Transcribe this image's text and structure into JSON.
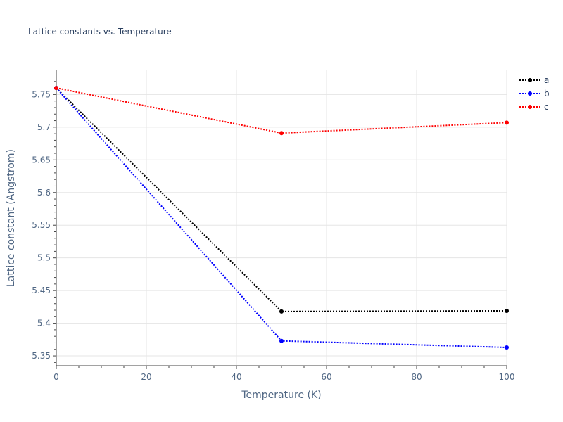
{
  "chart_data": {
    "type": "line",
    "title": "Lattice constants vs. Temperature",
    "xlabel": "Temperature (K)",
    "ylabel": "Lattice constant (Angstrom)",
    "xlim": [
      0,
      100
    ],
    "ylim": [
      5.335,
      5.787
    ],
    "x_ticks": [
      0,
      20,
      40,
      60,
      80,
      100
    ],
    "y_ticks": [
      5.35,
      5.4,
      5.45,
      5.5,
      5.55,
      5.6,
      5.65,
      5.7,
      5.75
    ],
    "x_tick_labels": [
      "0",
      "20",
      "40",
      "60",
      "80",
      "100"
    ],
    "y_tick_labels": [
      "5.35",
      "5.4",
      "5.45",
      "5.5",
      "5.55",
      "5.6",
      "5.65",
      "5.7",
      "5.75"
    ],
    "grid": true,
    "legend_position": "top-right",
    "series": [
      {
        "name": "a",
        "color": "#000000",
        "x": [
          0,
          50,
          100
        ],
        "y": [
          5.76,
          5.418,
          5.419
        ]
      },
      {
        "name": "b",
        "color": "#0000ff",
        "x": [
          0,
          50,
          100
        ],
        "y": [
          5.76,
          5.373,
          5.363
        ]
      },
      {
        "name": "c",
        "color": "#ff0000",
        "x": [
          0,
          50,
          100
        ],
        "y": [
          5.76,
          5.691,
          5.707
        ]
      }
    ]
  }
}
